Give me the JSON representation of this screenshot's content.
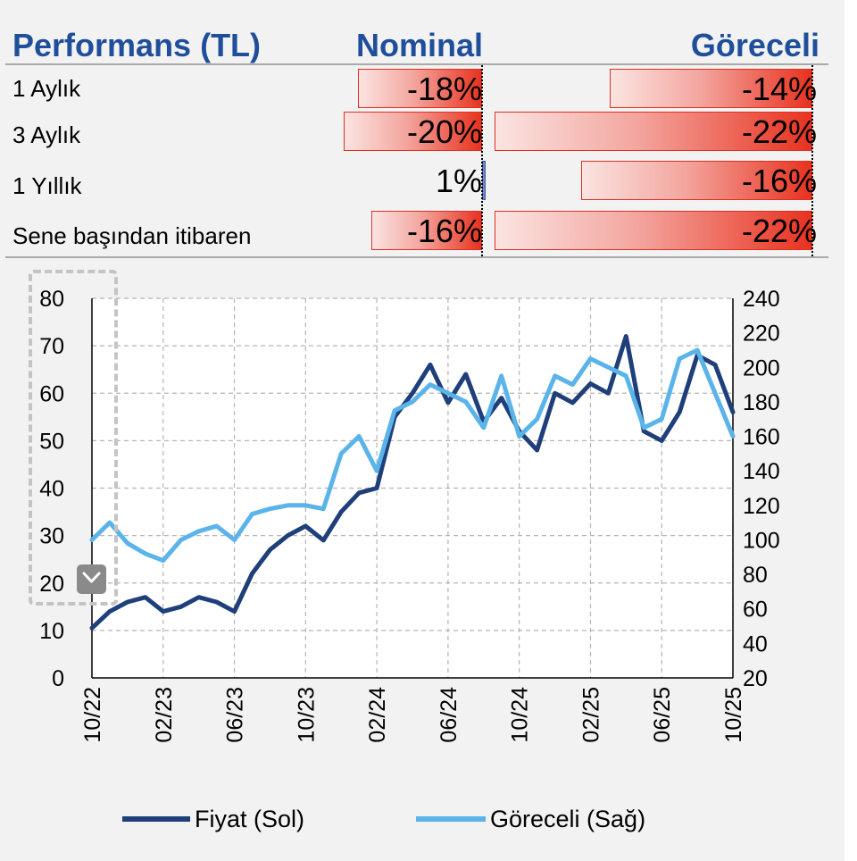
{
  "table": {
    "title": "Performans (TL)",
    "col_nominal": "Nominal",
    "col_relative": "Göreceli",
    "rows": [
      {
        "label": "1 Aylık",
        "nominal": -18,
        "nominal_text": "-18%",
        "relative": -14,
        "relative_text": "-14%"
      },
      {
        "label": "3 Aylık",
        "nominal": -20,
        "nominal_text": "-20%",
        "relative": -22,
        "relative_text": "-22%"
      },
      {
        "label": "1 Yıllık",
        "nominal": 1,
        "nominal_text": "1%",
        "relative": -16,
        "relative_text": "-16%"
      },
      {
        "label": "Sene başından itibaren",
        "nominal": -16,
        "nominal_text": "-16%",
        "relative": -22,
        "relative_text": "-22%"
      }
    ],
    "bar_color": "#e8321f",
    "positive_bar_color": "#6f86c4"
  },
  "chart_data": {
    "type": "line",
    "x_tick_labels": [
      "10/22",
      "02/23",
      "06/23",
      "10/23",
      "02/24",
      "06/24",
      "10/24",
      "02/25",
      "06/25",
      "10/25"
    ],
    "x_ticks": [
      "2022-10",
      "2023-02",
      "2023-06",
      "2023-10",
      "2024-02",
      "2024-06",
      "2024-10",
      "2025-02",
      "2025-06",
      "2025-10"
    ],
    "x_range": [
      "2022-10",
      "2025-10"
    ],
    "y_left": {
      "range": [
        0,
        80
      ],
      "ticks": [
        0,
        10,
        20,
        30,
        40,
        50,
        60,
        70,
        80
      ]
    },
    "y_right": {
      "range": [
        20,
        240
      ],
      "ticks": [
        20,
        40,
        60,
        80,
        100,
        120,
        140,
        160,
        180,
        200,
        220,
        240
      ]
    },
    "grid": true,
    "legend_position": "bottom",
    "series": [
      {
        "name": "Fiyat (Sol)",
        "axis": "left",
        "color": "#1f3f7a",
        "x": [
          "2022-10",
          "2022-11",
          "2022-12",
          "2023-01",
          "2023-02",
          "2023-03",
          "2023-04",
          "2023-05",
          "2023-06",
          "2023-07",
          "2023-08",
          "2023-09",
          "2023-10",
          "2023-11",
          "2023-12",
          "2024-01",
          "2024-02",
          "2024-03",
          "2024-04",
          "2024-05",
          "2024-06",
          "2024-07",
          "2024-08",
          "2024-09",
          "2024-10",
          "2024-11",
          "2024-12",
          "2025-01",
          "2025-02",
          "2025-03",
          "2025-04",
          "2025-05",
          "2025-06",
          "2025-07",
          "2025-08",
          "2025-09",
          "2025-10"
        ],
        "y": [
          10.5,
          14,
          16,
          17,
          14,
          15,
          17,
          16,
          14,
          22,
          27,
          30,
          32,
          29,
          35,
          39,
          40,
          55,
          60,
          66,
          58,
          64,
          54,
          59,
          52,
          48,
          60,
          58,
          62,
          60,
          72,
          52,
          50,
          56,
          68,
          66,
          56
        ]
      },
      {
        "name": "Göreceli (Sağ)",
        "axis": "right",
        "color": "#5ab4ea",
        "x": [
          "2022-10",
          "2022-11",
          "2022-12",
          "2023-01",
          "2023-02",
          "2023-03",
          "2023-04",
          "2023-05",
          "2023-06",
          "2023-07",
          "2023-08",
          "2023-09",
          "2023-10",
          "2023-11",
          "2023-12",
          "2024-01",
          "2024-02",
          "2024-03",
          "2024-04",
          "2024-05",
          "2024-06",
          "2024-07",
          "2024-08",
          "2024-09",
          "2024-10",
          "2024-11",
          "2024-12",
          "2025-01",
          "2025-02",
          "2025-03",
          "2025-04",
          "2025-05",
          "2025-06",
          "2025-07",
          "2025-08",
          "2025-09",
          "2025-10"
        ],
        "y": [
          100,
          110,
          98,
          92,
          88,
          100,
          105,
          108,
          100,
          115,
          118,
          120,
          120,
          118,
          150,
          160,
          140,
          175,
          180,
          190,
          185,
          180,
          165,
          195,
          160,
          170,
          195,
          190,
          205,
          200,
          195,
          165,
          170,
          205,
          210,
          185,
          160
        ]
      }
    ]
  }
}
